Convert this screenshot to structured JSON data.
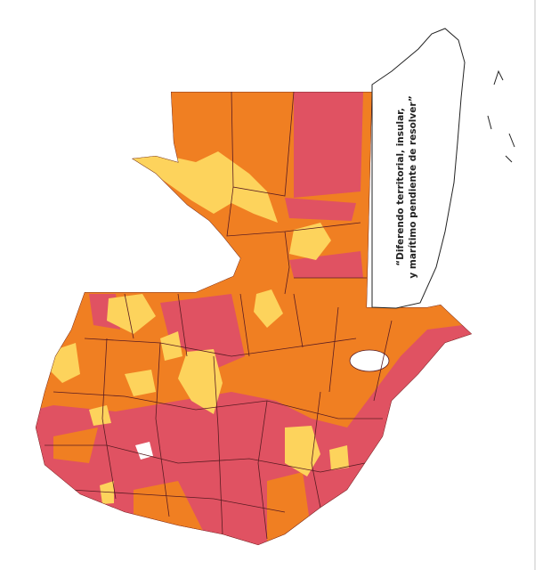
{
  "map": {
    "annotation": {
      "lines": [
        "“Diferendo territorial, insular,",
        "y marítimo pendiente de resolver”"
      ]
    }
  }
}
